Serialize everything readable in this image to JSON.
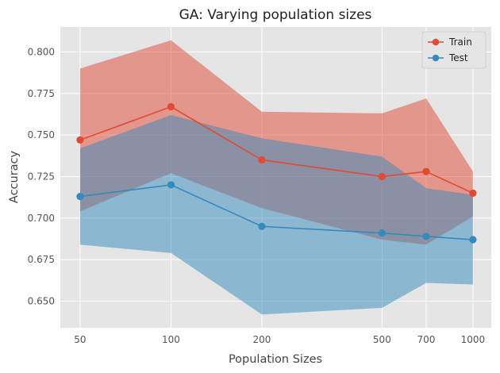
{
  "chart_data": {
    "type": "line",
    "title": "GA: Varying population sizes",
    "xlabel": "Population Sizes",
    "ylabel": "Accuracy",
    "x": [
      50,
      100,
      200,
      500,
      700,
      1000
    ],
    "x_tick_labels": [
      "50",
      "100",
      "200",
      "500",
      "700",
      "1000"
    ],
    "x_scale": "log",
    "xlim": [
      43,
      1150
    ],
    "ylim": [
      0.634,
      0.815
    ],
    "y_ticks": [
      0.65,
      0.675,
      0.7,
      0.725,
      0.75,
      0.775,
      0.8
    ],
    "y_tick_labels": [
      "0.650",
      "0.675",
      "0.700",
      "0.725",
      "0.750",
      "0.775",
      "0.800"
    ],
    "grid": true,
    "legend_position": "top-right",
    "series": [
      {
        "name": "Train",
        "color": "#e24a33",
        "values": [
          0.747,
          0.767,
          0.735,
          0.725,
          0.728,
          0.715
        ],
        "upper": [
          0.79,
          0.807,
          0.764,
          0.763,
          0.772,
          0.728
        ],
        "lower": [
          0.704,
          0.727,
          0.706,
          0.687,
          0.684,
          0.701
        ]
      },
      {
        "name": "Test",
        "color": "#348abd",
        "values": [
          0.713,
          0.72,
          0.695,
          0.691,
          0.689,
          0.687
        ],
        "upper": [
          0.742,
          0.762,
          0.748,
          0.737,
          0.718,
          0.714
        ],
        "lower": [
          0.684,
          0.679,
          0.642,
          0.646,
          0.661,
          0.66
        ]
      }
    ]
  }
}
